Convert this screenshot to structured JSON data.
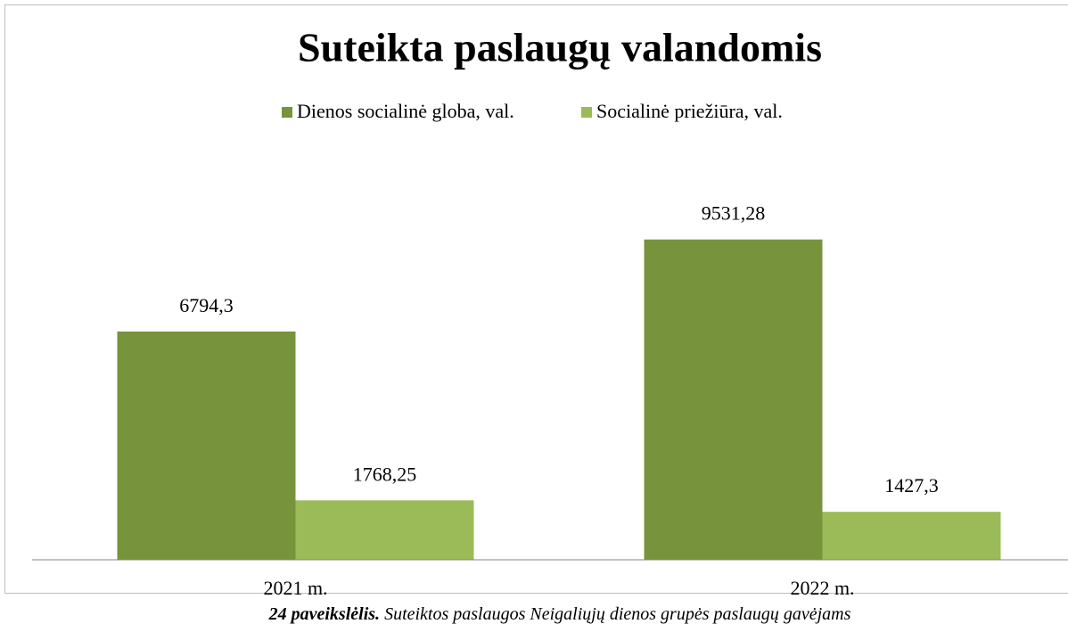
{
  "chart_data": {
    "type": "bar",
    "title": "Suteikta paslaugų valandomis",
    "categories": [
      "2021 m.",
      "2022 m."
    ],
    "series": [
      {
        "name": "Dienos socialinė globa, val.",
        "color": "#77933c",
        "values": [
          6794.3,
          9531.28
        ],
        "value_labels": [
          "6794,3",
          "9531,28"
        ]
      },
      {
        "name": "Socialinė priežiūra, val.",
        "color": "#9bbb59",
        "values": [
          1768.25,
          1427.3
        ],
        "value_labels": [
          "1768,25",
          "1427,3"
        ]
      }
    ],
    "ylim": [
      0,
      10000
    ],
    "legend": "top"
  },
  "caption": {
    "number": "24 paveikslėlis.",
    "text": "Suteiktos paslaugos Neigaliųjų dienos grupės paslaugų gavėjams"
  }
}
